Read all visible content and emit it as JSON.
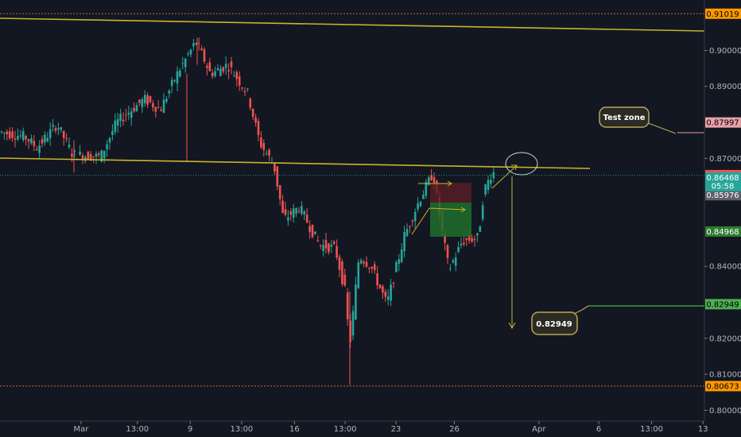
{
  "chart_data": {
    "type": "candlestick",
    "y_axis": {
      "range": [
        0.797,
        0.914
      ],
      "ticks": [
        {
          "value": 0.9,
          "label": "0.90000"
        },
        {
          "value": 0.89,
          "label": "0.89000"
        },
        {
          "value": 0.87,
          "label": "0.87000"
        },
        {
          "value": 0.84,
          "label": "0.84000"
        },
        {
          "value": 0.82,
          "label": "0.82000"
        },
        {
          "value": 0.81,
          "label": "0.81000"
        },
        {
          "value": 0.8,
          "label": "0.80000"
        }
      ]
    },
    "x_axis": {
      "ticks": [
        {
          "pos": 0.115,
          "label": "Mar"
        },
        {
          "pos": 0.195,
          "label": "13:00"
        },
        {
          "pos": 0.27,
          "label": "9"
        },
        {
          "pos": 0.343,
          "label": "13:00"
        },
        {
          "pos": 0.418,
          "label": "16"
        },
        {
          "pos": 0.49,
          "label": "13:00"
        },
        {
          "pos": 0.562,
          "label": "23"
        },
        {
          "pos": 0.645,
          "label": "26"
        },
        {
          "pos": 0.765,
          "label": "Apr"
        },
        {
          "pos": 0.85,
          "label": "6"
        },
        {
          "pos": 0.925,
          "label": "13:00"
        },
        {
          "pos": 0.998,
          "label": "13"
        }
      ]
    },
    "price_tags": [
      {
        "value": 0.91019,
        "label": "0.91019",
        "bg": "#ff9800",
        "fg": "#000000"
      },
      {
        "value": 0.87997,
        "label": "0.87997",
        "bg": "#e8a0a8",
        "fg": "#000000"
      },
      {
        "value": 0.86535,
        "label": "0.86535",
        "bg": "#ef5350",
        "fg": "#ffffff"
      },
      {
        "value": 0.86468,
        "label": "0.86468",
        "bg": "#26a69a",
        "fg": "#ffffff"
      },
      {
        "value": 0.85976,
        "label": "0.85976",
        "bg": "#5d606b",
        "fg": "#ffffff"
      },
      {
        "value": 0.84968,
        "label": "0.84968",
        "bg": "#2e7d32",
        "fg": "#ffffff"
      },
      {
        "value": 0.82949,
        "label": "0.82949",
        "bg": "#4caf50",
        "fg": "#000000"
      },
      {
        "value": 0.80673,
        "label": "0.80673",
        "bg": "#ff9800",
        "fg": "#000000"
      }
    ],
    "countdown": {
      "value": 0.8623,
      "label": "05:58",
      "bg": "#26a69a",
      "fg": "#ffffff"
    },
    "annotations": [
      {
        "name": "test-zone",
        "text": "Test zone"
      },
      {
        "name": "target",
        "text": "0.82949"
      }
    ],
    "colors": {
      "up": "#26a69a",
      "down": "#ef5350",
      "trendline": "#c9b42a",
      "dotted_level": "#c96d2a",
      "callout_border": "#b7a85a",
      "callout_bg": "#2b2b24"
    }
  }
}
